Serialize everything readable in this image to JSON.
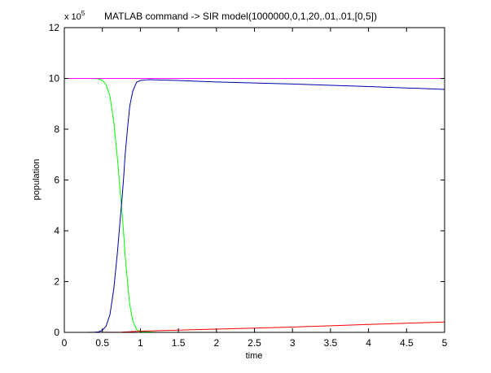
{
  "chart_data": {
    "type": "line",
    "title": "MATLAB command -> SIR model(1000000,0,1,20,.01,.01,[0,5])",
    "xlabel": "time",
    "ylabel": "population",
    "xlim": [
      0,
      5
    ],
    "ylim": [
      0,
      12
    ],
    "y_multiplier_label": "x 10",
    "y_multiplier_exponent": "5",
    "xticks": [
      "0",
      "0.5",
      "1",
      "1.5",
      "2",
      "2.5",
      "3",
      "3.5",
      "4",
      "4.5",
      "5"
    ],
    "yticks": [
      "0",
      "2",
      "4",
      "6",
      "8",
      "10",
      "12"
    ],
    "grid": false,
    "legend": "none",
    "series": [
      {
        "color": "#00ff00",
        "x": [
          0,
          0.3,
          0.4,
          0.45,
          0.5,
          0.55,
          0.6,
          0.65,
          0.7,
          0.73,
          0.76,
          0.78,
          0.8,
          0.83,
          0.86,
          0.9,
          0.95,
          1.0,
          1.2,
          1.5,
          2,
          3,
          4,
          5
        ],
        "y": [
          10,
          9.999,
          9.99,
          9.98,
          9.92,
          9.75,
          9.3,
          8.3,
          6.8,
          5.7,
          4.7,
          3.9,
          3.0,
          2.0,
          1.1,
          0.45,
          0.12,
          0.03,
          0.005,
          0.002,
          0.001,
          0.0005,
          0.0002,
          0.0001
        ]
      },
      {
        "color": "#0000aa",
        "x": [
          0,
          0.3,
          0.4,
          0.45,
          0.5,
          0.55,
          0.6,
          0.65,
          0.7,
          0.73,
          0.76,
          0.78,
          0.8,
          0.83,
          0.86,
          0.9,
          0.95,
          1.0,
          1.1,
          1.5,
          2,
          3,
          4,
          5
        ],
        "y": [
          0,
          0.001,
          0.01,
          0.02,
          0.08,
          0.25,
          0.7,
          1.7,
          3.2,
          4.3,
          5.3,
          6.1,
          7.0,
          8.0,
          8.9,
          9.5,
          9.85,
          9.92,
          9.95,
          9.92,
          9.86,
          9.78,
          9.68,
          9.57
        ]
      },
      {
        "color": "#ff0000",
        "x": [
          0,
          0.5,
          0.75,
          1,
          1.5,
          2,
          2.5,
          3,
          3.5,
          4,
          4.5,
          5
        ],
        "y": [
          0,
          0.002,
          0.008,
          0.05,
          0.09,
          0.13,
          0.17,
          0.21,
          0.26,
          0.31,
          0.36,
          0.41
        ]
      },
      {
        "color": "#ff00ff",
        "x": [
          0,
          5
        ],
        "y": [
          10,
          10
        ]
      }
    ]
  }
}
